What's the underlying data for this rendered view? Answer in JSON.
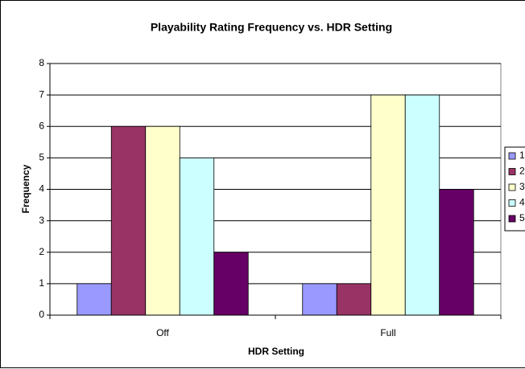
{
  "chart_data": {
    "type": "bar",
    "title": "Playability Rating Frequency vs. HDR Setting",
    "x_label": "HDR Setting",
    "y_label": "Frequency",
    "categories": [
      "Off",
      "Full"
    ],
    "series": [
      {
        "name": "1",
        "color": "#9999ff",
        "values": [
          1,
          1
        ]
      },
      {
        "name": "2",
        "color": "#993366",
        "values": [
          6,
          1
        ]
      },
      {
        "name": "3",
        "color": "#ffffcc",
        "values": [
          6,
          7
        ]
      },
      {
        "name": "4",
        "color": "#ccffff",
        "values": [
          5,
          7
        ]
      },
      {
        "name": "5",
        "color": "#660066",
        "values": [
          2,
          4
        ]
      }
    ],
    "ylim": [
      0,
      8
    ],
    "yticks": [
      0,
      1,
      2,
      3,
      4,
      5,
      6,
      7,
      8
    ],
    "grid": true,
    "legend": "right"
  }
}
